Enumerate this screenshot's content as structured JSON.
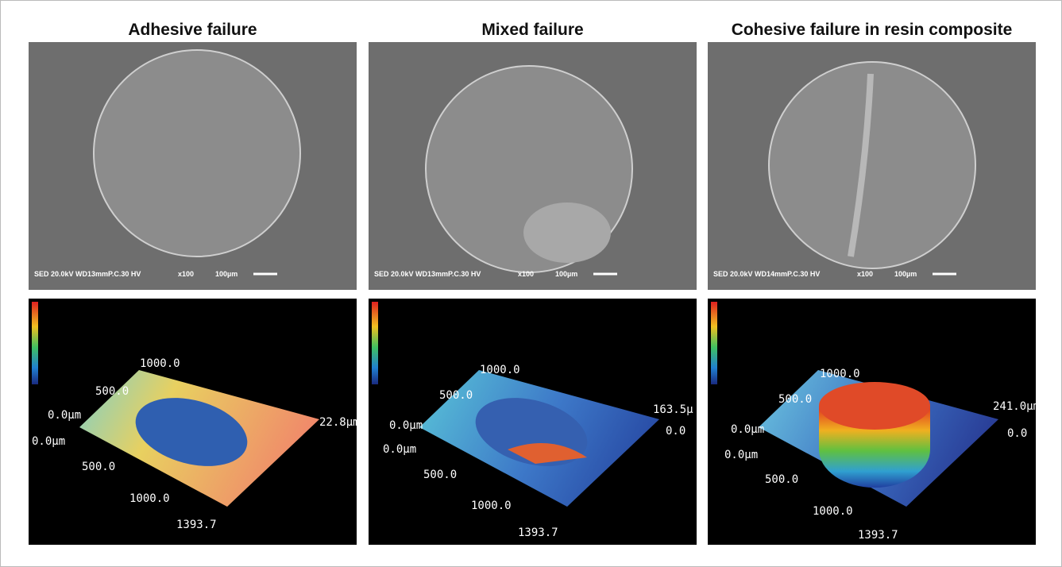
{
  "panels": [
    {
      "title": "Adhesive failure",
      "sem": {
        "info": "SED 20.0kV WD13mmP.C.30 HV",
        "magnification": "x100",
        "scale": "100µm"
      },
      "profile": {
        "labels": [
          "1000.0",
          "500.0",
          "0.0µm",
          "0.0µm",
          "500.0",
          "1000.0",
          "1393.7",
          "22.8µm"
        ]
      }
    },
    {
      "title": "Mixed failure",
      "sem": {
        "info": "SED 20.0kV WD13mmP.C.30 HV",
        "magnification": "x100",
        "scale": "100µm"
      },
      "profile": {
        "labels": [
          "1000.0",
          "500.0",
          "0.0µm",
          "0.0µm",
          "500.0",
          "1000.0",
          "1393.7",
          "163.5µ",
          "0.0"
        ]
      }
    },
    {
      "title": "Cohesive failure in resin composite",
      "sem": {
        "info": "SED 20.0kV WD14mmP.C.30 HV",
        "magnification": "x100",
        "scale": "100µm"
      },
      "profile": {
        "labels": [
          "1000.0",
          "500.0",
          "0.0µm",
          "0.0µm",
          "500.0",
          "1000.0",
          "1393.7",
          "241.0µm",
          "0.0"
        ]
      }
    }
  ]
}
